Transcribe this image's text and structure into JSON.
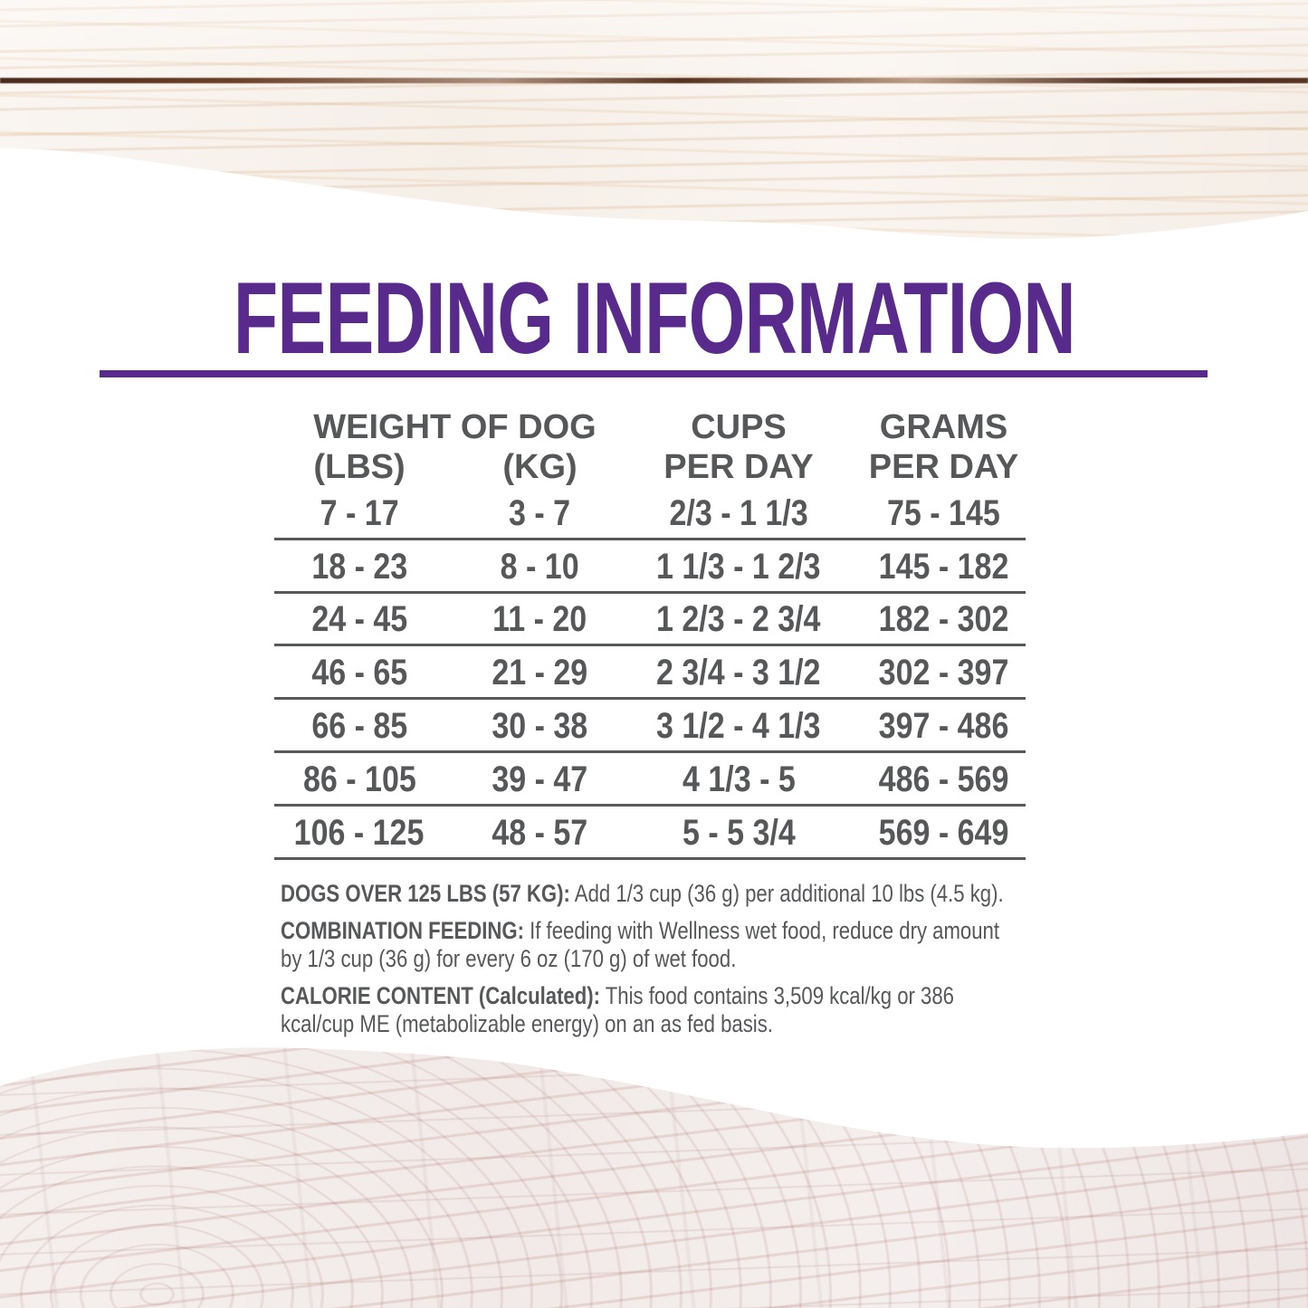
{
  "title": "FEEDING INFORMATION",
  "colors": {
    "accent": "#582a8c",
    "text": "#565759",
    "wood-top-base": "#f8f3ee",
    "wood-bottom-base": "#f3edeb"
  },
  "table": {
    "header": {
      "weight": "WEIGHT OF DOG",
      "lbs": "(LBS)",
      "kg": "(KG)",
      "cups_l1": "CUPS",
      "cups_l2": "PER DAY",
      "grams_l1": "GRAMS",
      "grams_l2": "PER DAY"
    },
    "rows": [
      [
        "7 - 17",
        "3 - 7",
        "2/3 - 1 1/3",
        "75 - 145"
      ],
      [
        "18 - 23",
        "8 - 10",
        "1 1/3 - 1 2/3",
        "145 - 182"
      ],
      [
        "24 - 45",
        "11 - 20",
        "1 2/3 - 2 3/4",
        "182 - 302"
      ],
      [
        "46 - 65",
        "21 - 29",
        "2 3/4 - 3 1/2",
        "302 - 397"
      ],
      [
        "66 - 85",
        "30 - 38",
        "3 1/2 - 4 1/3",
        "397 - 486"
      ],
      [
        "86 - 105",
        "39 - 47",
        "4 1/3 - 5",
        "486 - 569"
      ],
      [
        "106 - 125",
        "48 - 57",
        "5 - 5 3/4",
        "569 - 649"
      ]
    ]
  },
  "notes": [
    {
      "label": "DOGS OVER 125 LBS (57 KG):",
      "lines": [
        " Add 1/3 cup (36 g) per additional 10 lbs (4.5 kg)."
      ]
    },
    {
      "label": "COMBINATION FEEDING:",
      "lines": [
        " If feeding with Wellness wet food, reduce dry amount",
        "by 1/3 cup (36 g) for every 6 oz (170 g) of wet food."
      ]
    },
    {
      "label": "CALORIE CONTENT (Calculated):",
      "lines": [
        " This food contains 3,509 kcal/kg or 386",
        "kcal/cup ME (metabolizable energy) on an as fed basis."
      ]
    }
  ]
}
